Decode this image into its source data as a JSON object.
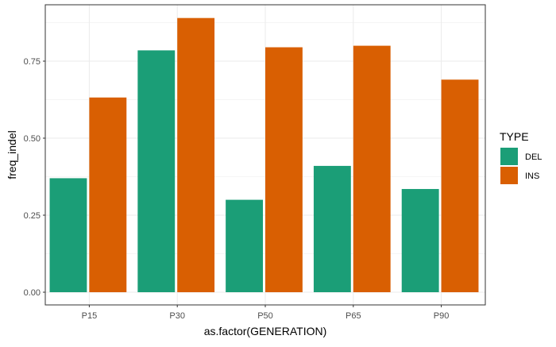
{
  "chart_data": {
    "type": "bar",
    "xlabel": "as.factor(GENERATION)",
    "ylabel": "freq_indel",
    "categories": [
      "P15",
      "P30",
      "P50",
      "P65",
      "P90"
    ],
    "series": [
      {
        "name": "DEL",
        "color": "#1b9e77",
        "values": [
          0.37,
          0.785,
          0.3,
          0.41,
          0.335
        ]
      },
      {
        "name": "INS",
        "color": "#d95f02",
        "values": [
          0.632,
          0.89,
          0.795,
          0.8,
          0.69
        ]
      }
    ],
    "y_ticks": [
      0,
      0.25,
      0.5,
      0.75
    ],
    "y_tick_labels": [
      "0.00",
      "0.25",
      "0.50",
      "0.75"
    ],
    "ylim": [
      0,
      0.9345
    ],
    "grid": true,
    "legend": {
      "title": "TYPE",
      "placement": "right"
    }
  }
}
